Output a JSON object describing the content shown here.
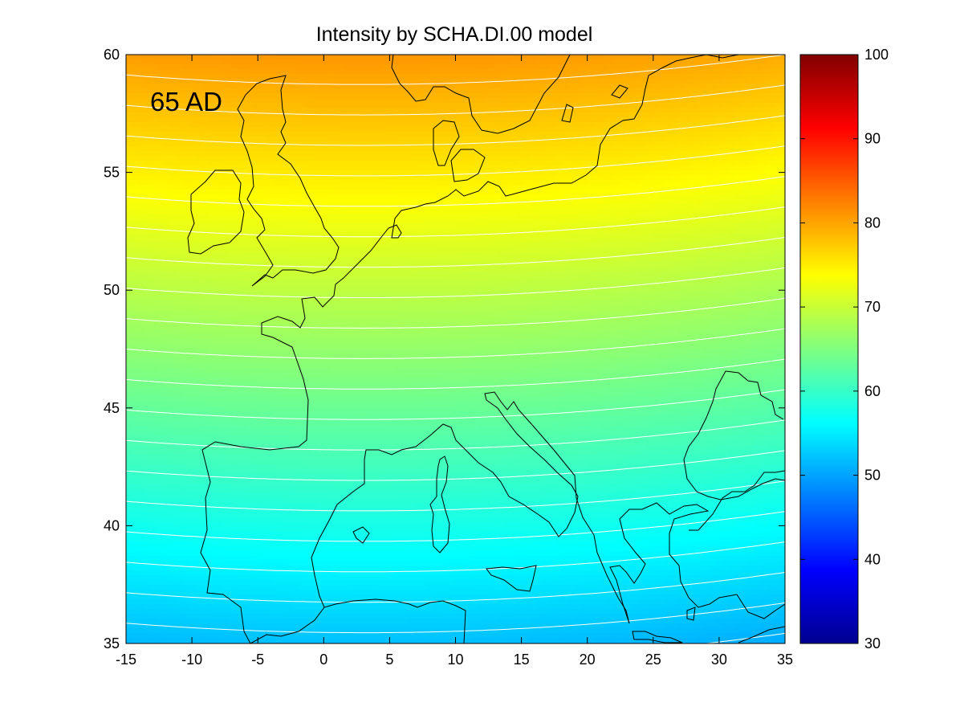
{
  "chart_data": {
    "type": "heatmap",
    "title": "Intensity by SCHA.DI.00 model",
    "annotation": "65 AD",
    "xlabel": "",
    "ylabel": "",
    "xlim": [
      -15,
      35
    ],
    "ylim": [
      35,
      60
    ],
    "x_ticks": [
      -15,
      -10,
      -5,
      0,
      5,
      10,
      15,
      20,
      25,
      30,
      35
    ],
    "y_ticks": [
      35,
      40,
      45,
      50,
      55,
      60
    ],
    "colorbar": {
      "range": [
        30,
        100
      ],
      "ticks": [
        30,
        40,
        50,
        60,
        70,
        80,
        90,
        100
      ],
      "colormap": "jet"
    },
    "field_samples": [
      {
        "lon": -15,
        "lat": 60,
        "value": 79
      },
      {
        "lon": 10,
        "lat": 60,
        "value": 80
      },
      {
        "lon": 35,
        "lat": 60,
        "value": 78
      },
      {
        "lon": 5,
        "lat": 55,
        "value": 74
      },
      {
        "lon": 5,
        "lat": 50,
        "value": 69
      },
      {
        "lon": 5,
        "lat": 45,
        "value": 63
      },
      {
        "lon": 5,
        "lat": 40,
        "value": 57
      },
      {
        "lon": 5,
        "lat": 35,
        "value": 51
      },
      {
        "lon": 35,
        "lat": 35,
        "value": 49
      }
    ],
    "contour_lines": "white",
    "grid": false,
    "coastlines": true
  }
}
